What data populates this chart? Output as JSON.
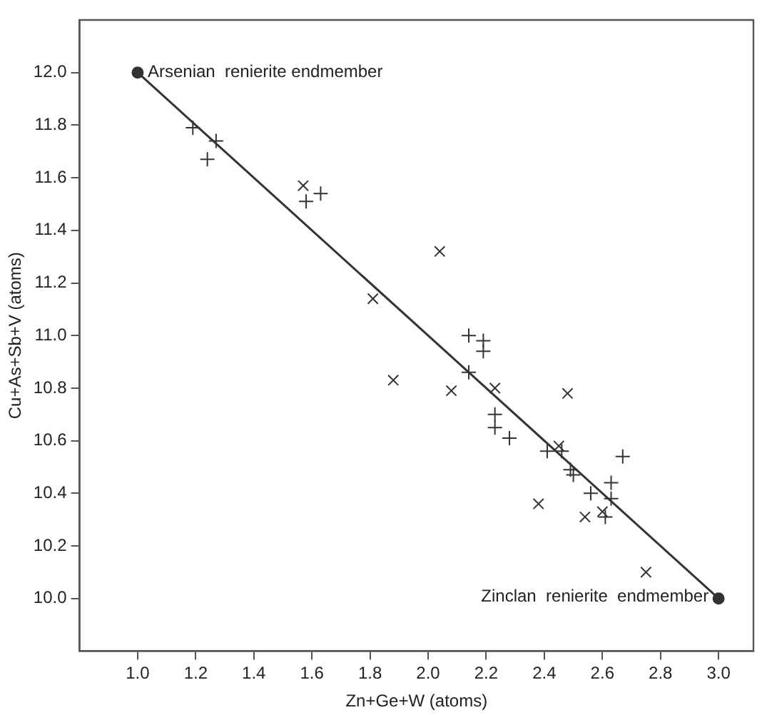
{
  "chart_data": {
    "type": "scatter",
    "xlabel": "Zn+Ge+W (atoms)",
    "ylabel": "Cu+As+Sb+V (atoms)",
    "xlim": [
      0.8,
      3.12
    ],
    "ylim": [
      9.8,
      12.2
    ],
    "xticks": [
      {
        "value": 1,
        "label": "1.0"
      },
      {
        "value": 1.2,
        "label": "1.2"
      },
      {
        "value": 1.4,
        "label": "1.4"
      },
      {
        "value": 1.6,
        "label": "1.6"
      },
      {
        "value": 1.8,
        "label": "1.8"
      },
      {
        "value": 2,
        "label": "2.0"
      },
      {
        "value": 2.2,
        "label": "2.2"
      },
      {
        "value": 2.4,
        "label": "2.4"
      },
      {
        "value": 2.6,
        "label": "2.6"
      },
      {
        "value": 2.8,
        "label": "2.8"
      },
      {
        "value": 3,
        "label": "3.0"
      }
    ],
    "yticks": [
      {
        "value": 10,
        "label": "10.0"
      },
      {
        "value": 10.2,
        "label": "10.2"
      },
      {
        "value": 10.4,
        "label": "10.4"
      },
      {
        "value": 10.6,
        "label": "10.6"
      },
      {
        "value": 10.8,
        "label": "10.8"
      },
      {
        "value": 11,
        "label": "11.0"
      },
      {
        "value": 11.2,
        "label": "11.2"
      },
      {
        "value": 11.4,
        "label": "11.4"
      },
      {
        "value": 11.6,
        "label": "11.6"
      },
      {
        "value": 11.8,
        "label": "11.8"
      },
      {
        "value": 12,
        "label": "12.0"
      }
    ],
    "grid": false,
    "legend": false,
    "series": [
      {
        "type": "line",
        "color": "#333333",
        "marker": "circle",
        "x": [
          1,
          3
        ],
        "values": [
          12,
          10
        ]
      },
      {
        "type": "scatter",
        "color": "#333333",
        "marker": "plus",
        "x": [
          1.19,
          1.27,
          1.24,
          1.58,
          1.63,
          2.14,
          2.19,
          2.19,
          2.14,
          2.23,
          2.23,
          2.28,
          2.41,
          2.46,
          2.49,
          2.5,
          2.56,
          2.63,
          2.63,
          2.61,
          2.67
        ],
        "values": [
          11.79,
          11.74,
          11.67,
          11.51,
          11.54,
          11.0,
          10.98,
          10.94,
          10.86,
          10.7,
          10.65,
          10.61,
          10.56,
          10.56,
          10.49,
          10.47,
          10.4,
          10.44,
          10.38,
          10.31,
          10.54
        ]
      },
      {
        "type": "scatter",
        "color": "#333333",
        "marker": "cross",
        "x": [
          1.57,
          1.81,
          1.88,
          2.04,
          2.08,
          2.23,
          2.45,
          2.48,
          2.38,
          2.54,
          2.6,
          2.75
        ],
        "values": [
          11.57,
          11.14,
          10.83,
          11.32,
          10.79,
          10.8,
          10.58,
          10.78,
          10.36,
          10.31,
          10.33,
          10.1
        ]
      }
    ],
    "annotations": [
      {
        "text": "Arsenian  renierite endmember",
        "x": 1,
        "y": 12
      },
      {
        "text": "Zinclan  renierite  endmember",
        "x": 3,
        "y": 10
      }
    ]
  }
}
